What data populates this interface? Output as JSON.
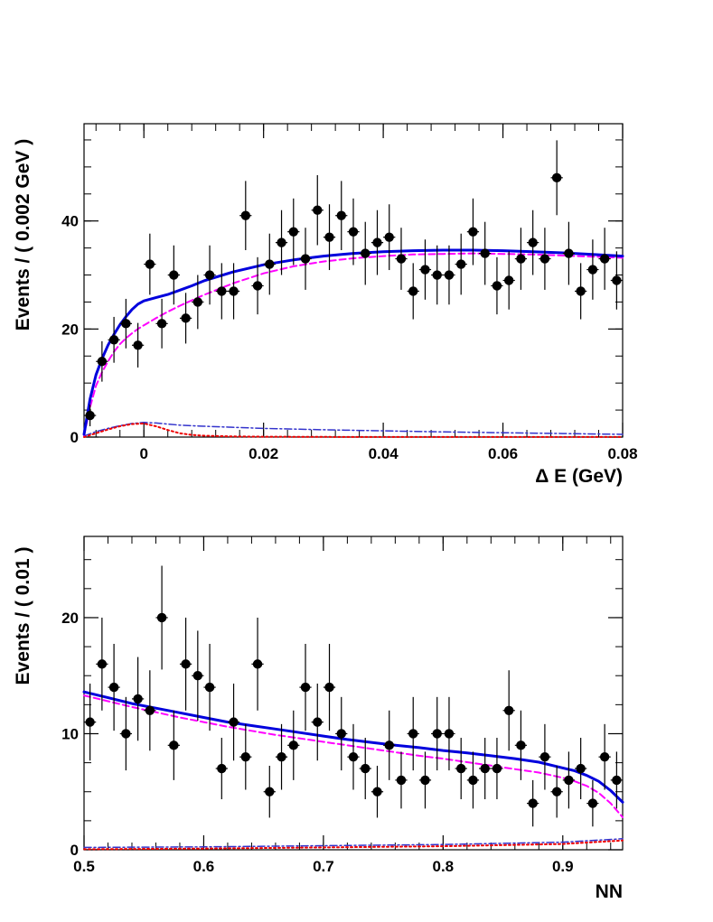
{
  "chart_data": [
    {
      "type": "scatter",
      "title": "",
      "xlabel": "Δ E (GeV)",
      "ylabel": "Events / ( 0.002 GeV )",
      "xlim": [
        -0.01,
        0.08
      ],
      "ylim": [
        0,
        58
      ],
      "xticks": [
        0,
        0.02,
        0.04,
        0.06,
        0.08
      ],
      "xtick_labels": [
        "0",
        "0.02",
        "0.04",
        "0.06",
        "0.08"
      ],
      "yticks": [
        0,
        20,
        40
      ],
      "ytick_labels": [
        "0",
        "20",
        "40"
      ],
      "grid": false,
      "legend": "none",
      "bin_width": 0.002,
      "data_points": {
        "x": [
          -0.009,
          -0.007,
          -0.005,
          -0.003,
          -0.001,
          0.001,
          0.003,
          0.005,
          0.007,
          0.009,
          0.011,
          0.013,
          0.015,
          0.017,
          0.019,
          0.021,
          0.023,
          0.025,
          0.027,
          0.029,
          0.031,
          0.033,
          0.035,
          0.037,
          0.039,
          0.041,
          0.043,
          0.045,
          0.047,
          0.049,
          0.051,
          0.053,
          0.055,
          0.057,
          0.059,
          0.061,
          0.063,
          0.065,
          0.067,
          0.069,
          0.071,
          0.073,
          0.075,
          0.077,
          0.079
        ],
        "y": [
          4,
          14,
          18,
          21,
          17,
          32,
          21,
          30,
          22,
          25,
          30,
          27,
          27,
          41,
          28,
          32,
          36,
          38,
          33,
          42,
          37,
          41,
          38,
          34,
          36,
          37,
          33,
          27,
          31,
          30,
          30,
          32,
          38,
          34,
          28,
          29,
          33,
          36,
          33,
          48,
          34,
          27,
          31,
          33,
          29
        ]
      },
      "series": [
        {
          "style": "solid",
          "color": "#0000dd",
          "x": [
            -0.01,
            -0.009,
            -0.008,
            -0.007,
            -0.006,
            -0.005,
            -0.004,
            -0.003,
            -0.002,
            -0.001,
            0.0,
            0.002,
            0.004,
            0.006,
            0.008,
            0.01,
            0.015,
            0.02,
            0.025,
            0.03,
            0.035,
            0.04,
            0.045,
            0.05,
            0.055,
            0.06,
            0.065,
            0.07,
            0.075,
            0.08
          ],
          "y": [
            0.5,
            7,
            11.5,
            14.5,
            17,
            19,
            20.8,
            22.3,
            23.6,
            24.6,
            25.2,
            25.8,
            26.4,
            27.2,
            28.0,
            28.9,
            30.6,
            31.9,
            32.8,
            33.5,
            34.0,
            34.3,
            34.5,
            34.6,
            34.6,
            34.5,
            34.3,
            34.1,
            33.8,
            33.5
          ]
        },
        {
          "style": "dashed",
          "color": "#ff00ff",
          "x": [
            -0.01,
            -0.009,
            -0.008,
            -0.007,
            -0.006,
            -0.005,
            -0.004,
            -0.003,
            -0.002,
            -0.001,
            0.0,
            0.002,
            0.004,
            0.006,
            0.008,
            0.01,
            0.015,
            0.02,
            0.025,
            0.03,
            0.035,
            0.04,
            0.045,
            0.05,
            0.055,
            0.06,
            0.065,
            0.07,
            0.075,
            0.08
          ],
          "y": [
            0.3,
            5.5,
            9.5,
            12,
            14,
            15.8,
            17.2,
            18.3,
            19.2,
            20.0,
            20.7,
            22.0,
            23.2,
            24.3,
            25.3,
            26.3,
            28.5,
            30.3,
            31.6,
            32.5,
            33.1,
            33.5,
            33.8,
            33.9,
            34.0,
            33.9,
            33.8,
            33.6,
            33.4,
            33.2
          ]
        },
        {
          "style": "dotted",
          "color": "#ee0000",
          "x": [
            -0.01,
            -0.008,
            -0.006,
            -0.004,
            -0.002,
            0.0,
            0.002,
            0.004,
            0.006,
            0.008,
            0.01,
            0.015,
            0.02,
            0.03,
            0.04,
            0.05,
            0.06,
            0.07,
            0.08
          ],
          "y": [
            0.0,
            0.7,
            1.4,
            2.0,
            2.4,
            2.5,
            2.0,
            1.3,
            0.7,
            0.4,
            0.25,
            0.12,
            0.06,
            0.03,
            0.02,
            0.01,
            0.01,
            0.01,
            0.01
          ]
        },
        {
          "style": "dashdot",
          "color": "#3333cc",
          "x": [
            -0.01,
            -0.008,
            -0.006,
            -0.004,
            -0.002,
            0.0,
            0.002,
            0.004,
            0.006,
            0.01,
            0.02,
            0.03,
            0.04,
            0.05,
            0.06,
            0.07,
            0.08
          ],
          "y": [
            0.2,
            1.0,
            1.6,
            2.1,
            2.5,
            2.7,
            2.6,
            2.4,
            2.2,
            2.0,
            1.6,
            1.35,
            1.15,
            0.95,
            0.8,
            0.65,
            0.5
          ]
        }
      ]
    },
    {
      "type": "scatter",
      "title": "",
      "xlabel": "NN",
      "ylabel": "Events / ( 0.01 )",
      "xlim": [
        0.5,
        0.95
      ],
      "ylim": [
        0,
        27
      ],
      "xticks": [
        0.5,
        0.6,
        0.7,
        0.8,
        0.9
      ],
      "xtick_labels": [
        "0.5",
        "0.6",
        "0.7",
        "0.8",
        "0.9"
      ],
      "yticks": [
        0,
        10,
        20
      ],
      "ytick_labels": [
        "0",
        "10",
        "20"
      ],
      "grid": false,
      "legend": "none",
      "bin_width": 0.01,
      "data_points": {
        "x": [
          0.505,
          0.515,
          0.525,
          0.535,
          0.545,
          0.555,
          0.565,
          0.575,
          0.585,
          0.595,
          0.605,
          0.615,
          0.625,
          0.635,
          0.645,
          0.655,
          0.665,
          0.675,
          0.685,
          0.695,
          0.705,
          0.715,
          0.725,
          0.735,
          0.745,
          0.755,
          0.765,
          0.775,
          0.785,
          0.795,
          0.805,
          0.815,
          0.825,
          0.835,
          0.845,
          0.855,
          0.865,
          0.875,
          0.885,
          0.895,
          0.905,
          0.915,
          0.925,
          0.935,
          0.945
        ],
        "y": [
          11,
          16,
          14,
          10,
          13,
          12,
          20,
          9,
          16,
          15,
          14,
          7,
          11,
          8,
          16,
          5,
          8,
          9,
          14,
          11,
          14,
          10,
          8,
          7,
          5,
          9,
          6,
          10,
          6,
          10,
          10,
          7,
          6,
          7,
          7,
          12,
          9,
          4,
          8,
          5,
          6,
          7,
          4,
          8,
          6
        ]
      },
      "series": [
        {
          "style": "solid",
          "color": "#0000dd",
          "x": [
            0.5,
            0.52,
            0.54,
            0.56,
            0.58,
            0.6,
            0.62,
            0.64,
            0.66,
            0.68,
            0.7,
            0.72,
            0.74,
            0.76,
            0.78,
            0.8,
            0.82,
            0.84,
            0.86,
            0.88,
            0.9,
            0.91,
            0.92,
            0.93,
            0.94,
            0.95
          ],
          "y": [
            13.6,
            13.1,
            12.6,
            12.2,
            11.8,
            11.4,
            11.0,
            10.7,
            10.4,
            10.1,
            9.8,
            9.5,
            9.25,
            9.0,
            8.8,
            8.55,
            8.35,
            8.1,
            7.85,
            7.55,
            7.05,
            6.8,
            6.4,
            5.9,
            5.1,
            4.1
          ]
        },
        {
          "style": "dashed",
          "color": "#ff00ff",
          "x": [
            0.5,
            0.52,
            0.54,
            0.56,
            0.58,
            0.6,
            0.62,
            0.64,
            0.66,
            0.68,
            0.7,
            0.72,
            0.74,
            0.76,
            0.78,
            0.8,
            0.82,
            0.84,
            0.86,
            0.88,
            0.9,
            0.91,
            0.92,
            0.93,
            0.94,
            0.95
          ],
          "y": [
            13.3,
            12.8,
            12.3,
            11.85,
            11.4,
            11.0,
            10.6,
            10.25,
            9.9,
            9.6,
            9.3,
            9.0,
            8.7,
            8.4,
            8.1,
            7.85,
            7.55,
            7.25,
            6.95,
            6.65,
            6.2,
            5.9,
            5.5,
            4.9,
            4.0,
            2.8
          ]
        },
        {
          "style": "dotted",
          "color": "#ee0000",
          "x": [
            0.5,
            0.6,
            0.7,
            0.8,
            0.9,
            0.95
          ],
          "y": [
            0.05,
            0.1,
            0.2,
            0.3,
            0.5,
            0.8
          ]
        },
        {
          "style": "dashdot",
          "color": "#3333cc",
          "x": [
            0.5,
            0.6,
            0.7,
            0.8,
            0.9,
            0.95
          ],
          "y": [
            0.2,
            0.25,
            0.35,
            0.45,
            0.65,
            0.95
          ]
        }
      ]
    }
  ]
}
